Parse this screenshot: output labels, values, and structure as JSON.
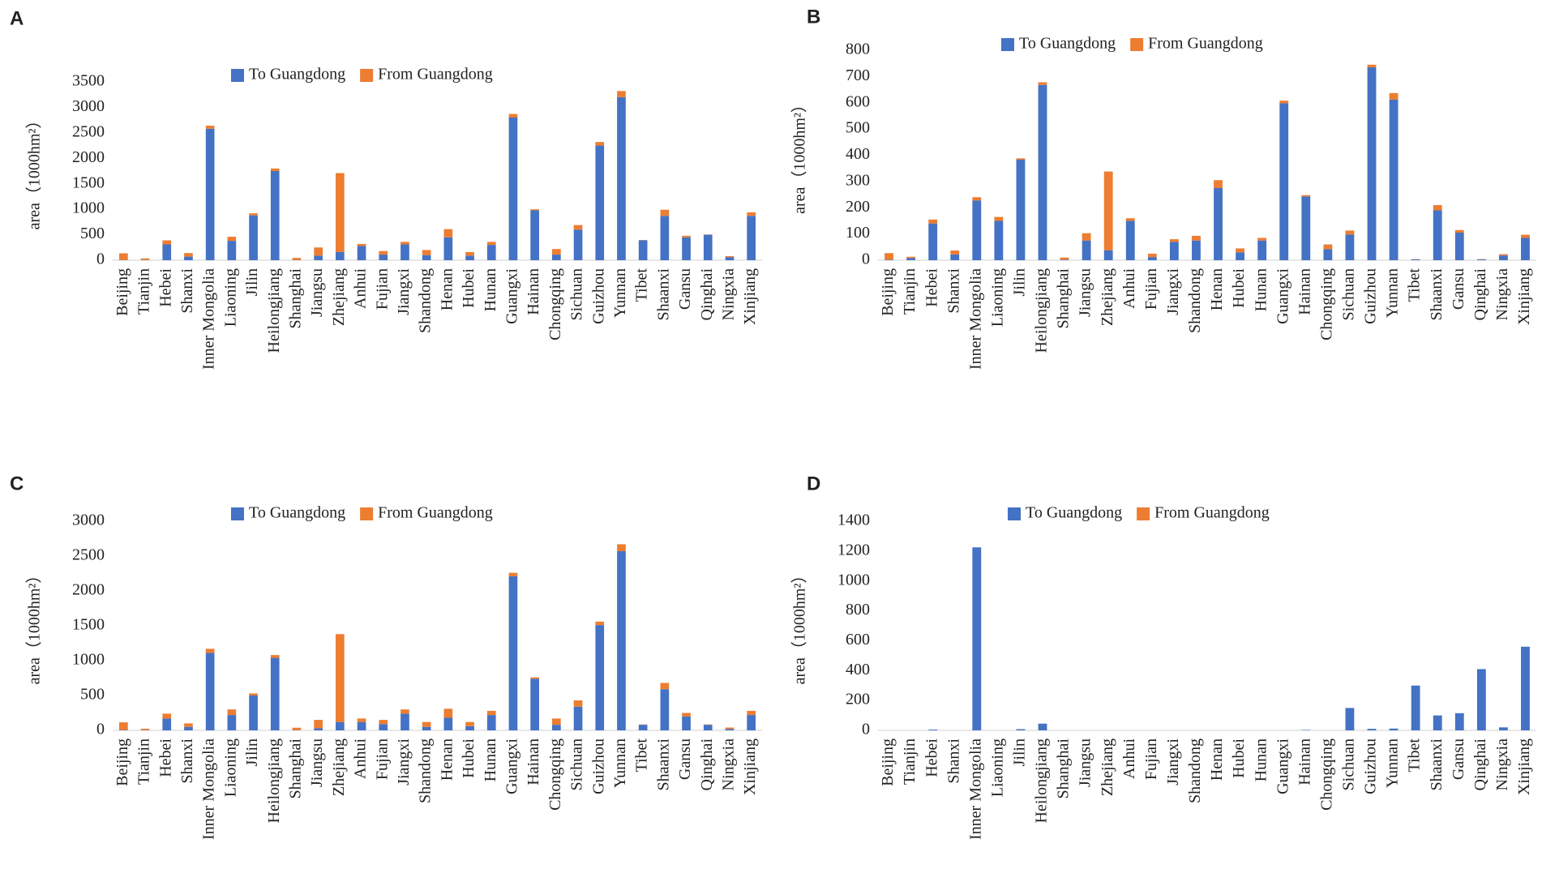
{
  "chart_data": [
    {
      "type": "bar",
      "stacked": true,
      "panel": "A",
      "ylabel": "area（1000hm²）",
      "legend": "top",
      "categories": [
        "Beijing",
        "Tianjin",
        "Hebei",
        "Shanxi",
        "Inner Mongolia",
        "Liaoning",
        "Jilin",
        "Heilongjiang",
        "Shanghai",
        "Jiangsu",
        "Zhejiang",
        "Anhui",
        "Fujian",
        "Jiangxi",
        "Shandong",
        "Henan",
        "Hubei",
        "Hunan",
        "Guangxi",
        "Hainan",
        "Chongqing",
        "Sichuan",
        "Guizhou",
        "Yunnan",
        "Tibet",
        "Shaanxi",
        "Gansu",
        "Qinghai",
        "Ningxia",
        "Xinjiang"
      ],
      "series": [
        {
          "name": "To Guangdong",
          "color": "#4472c4",
          "values": [
            5,
            5,
            310,
            70,
            2580,
            380,
            880,
            1750,
            5,
            90,
            160,
            280,
            110,
            310,
            100,
            450,
            90,
            300,
            2800,
            980,
            110,
            600,
            2250,
            3200,
            390,
            870,
            450,
            500,
            60,
            870
          ]
        },
        {
          "name": "From Guangdong",
          "color": "#ed7d31",
          "values": [
            130,
            30,
            80,
            70,
            60,
            80,
            40,
            50,
            40,
            160,
            1550,
            40,
            70,
            50,
            100,
            160,
            70,
            60,
            70,
            20,
            110,
            90,
            70,
            120,
            5,
            120,
            30,
            5,
            20,
            70
          ]
        }
      ],
      "ylim": [
        0,
        3500
      ],
      "yticks": [
        0,
        500,
        1000,
        1500,
        2000,
        2500,
        3000,
        3500
      ]
    },
    {
      "type": "bar",
      "stacked": true,
      "panel": "B",
      "ylabel": "area（1000hm²）",
      "legend": "top",
      "categories": [
        "Beijing",
        "Tianjin",
        "Hebei",
        "Shanxi",
        "Inner Mongolia",
        "Liaoning",
        "Jilin",
        "Heilongjiang",
        "Shanghai",
        "Jiangsu",
        "Zhejiang",
        "Anhui",
        "Fujian",
        "Jiangxi",
        "Shandong",
        "Henan",
        "Hubei",
        "Hunan",
        "Guangxi",
        "Hainan",
        "Chongqing",
        "Sichuan",
        "Guizhou",
        "Yunnan",
        "Tibet",
        "Shaanxi",
        "Gansu",
        "Qinghai",
        "Ningxia",
        "Xinjiang"
      ],
      "series": [
        {
          "name": "To Guangdong",
          "color": "#4472c4",
          "values": [
            2,
            8,
            140,
            22,
            228,
            150,
            383,
            668,
            2,
            75,
            38,
            150,
            12,
            70,
            75,
            275,
            30,
            75,
            598,
            243,
            42,
            98,
            735,
            612,
            3,
            190,
            105,
            3,
            18,
            85
          ]
        },
        {
          "name": "From Guangdong",
          "color": "#ed7d31",
          "values": [
            25,
            5,
            15,
            15,
            12,
            15,
            5,
            10,
            8,
            28,
            300,
            10,
            13,
            10,
            18,
            30,
            15,
            10,
            10,
            5,
            18,
            15,
            10,
            25,
            1,
            20,
            10,
            1,
            5,
            12
          ]
        }
      ],
      "ylim": [
        0,
        800
      ],
      "yticks": [
        0,
        100,
        200,
        300,
        400,
        500,
        600,
        700,
        800
      ]
    },
    {
      "type": "bar",
      "stacked": true,
      "panel": "C",
      "ylabel": "area（1000hm²）",
      "legend": "top",
      "categories": [
        "Beijing",
        "Tianjin",
        "Hebei",
        "Shanxi",
        "Inner Mongolia",
        "Liaoning",
        "Jilin",
        "Heilongjiang",
        "Shanghai",
        "Jiangsu",
        "Zhejiang",
        "Anhui",
        "Fujian",
        "Jiangxi",
        "Shandong",
        "Henan",
        "Hubei",
        "Hunan",
        "Guangxi",
        "Hainan",
        "Chongqing",
        "Sichuan",
        "Guizhou",
        "Yunnan",
        "Tibet",
        "Shaanxi",
        "Gansu",
        "Qinghai",
        "Ningxia",
        "Xinjiang"
      ],
      "series": [
        {
          "name": "To Guangdong",
          "color": "#4472c4",
          "values": [
            5,
            3,
            170,
            50,
            1110,
            220,
            500,
            1040,
            3,
            30,
            120,
            120,
            90,
            240,
            50,
            180,
            60,
            220,
            2210,
            740,
            80,
            340,
            1510,
            2570,
            80,
            590,
            200,
            80,
            20,
            220
          ]
        },
        {
          "name": "From Guangdong",
          "color": "#ed7d31",
          "values": [
            110,
            20,
            70,
            50,
            60,
            80,
            30,
            40,
            35,
            120,
            1260,
            50,
            60,
            60,
            70,
            130,
            60,
            60,
            50,
            20,
            90,
            90,
            50,
            100,
            5,
            90,
            50,
            5,
            20,
            60
          ]
        }
      ],
      "ylim": [
        0,
        3000
      ],
      "yticks": [
        0,
        500,
        1000,
        1500,
        2000,
        2500,
        3000
      ]
    },
    {
      "type": "bar",
      "stacked": true,
      "panel": "D",
      "ylabel": "area（1000hm²）",
      "legend": "top",
      "categories": [
        "Beijing",
        "Tianjin",
        "Hebei",
        "Shanxi",
        "Inner Mongolia",
        "Liaoning",
        "Jilin",
        "Heilongjiang",
        "Shanghai",
        "Jiangsu",
        "Zhejiang",
        "Anhui",
        "Fujian",
        "Jiangxi",
        "Shandong",
        "Henan",
        "Hubei",
        "Hunan",
        "Guangxi",
        "Hainan",
        "Chongqing",
        "Sichuan",
        "Guizhou",
        "Yunnan",
        "Tibet",
        "Shaanxi",
        "Gansu",
        "Qinghai",
        "Ningxia",
        "Xinjiang"
      ],
      "series": [
        {
          "name": "To Guangdong",
          "color": "#4472c4",
          "values": [
            0,
            0,
            5,
            0,
            1225,
            0,
            8,
            45,
            0,
            0,
            0,
            0,
            0,
            0,
            0,
            0,
            0,
            0,
            0,
            3,
            0,
            150,
            10,
            12,
            300,
            100,
            115,
            410,
            20,
            560
          ]
        },
        {
          "name": "From Guangdong",
          "color": "#ed7d31",
          "values": [
            0,
            0,
            0,
            0,
            0,
            0,
            0,
            0,
            0,
            0,
            0,
            0,
            0,
            0,
            0,
            0,
            0,
            0,
            0,
            0,
            0,
            0,
            0,
            0,
            0,
            0,
            0,
            0,
            0,
            0
          ]
        }
      ],
      "ylim": [
        0,
        1400
      ],
      "yticks": [
        0,
        200,
        400,
        600,
        800,
        1000,
        1200,
        1400
      ]
    }
  ]
}
